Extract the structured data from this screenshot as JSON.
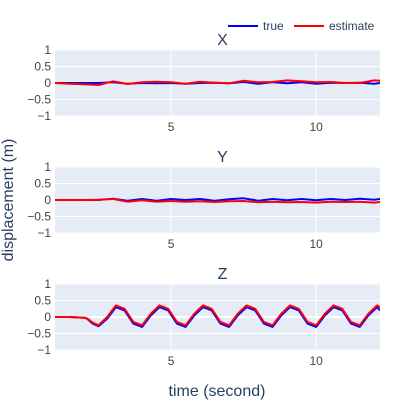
{
  "chart_data": {
    "type": "line",
    "xlabel": "time (second)",
    "ylabel": "displacement (m)",
    "xlim": [
      1,
      12.2
    ],
    "ylim": [
      -1,
      1
    ],
    "xticks": [
      5,
      10
    ],
    "yticks": [
      1,
      0.5,
      0,
      -0.5,
      -1
    ],
    "ytick_labels": [
      "1",
      "0.5",
      "0",
      "−0.5",
      "−1"
    ],
    "grid": true,
    "legend_placement": "top-right",
    "series_styles": [
      {
        "name": "true",
        "color": "#0000ff"
      },
      {
        "name": "estimate",
        "color": "#ff0000"
      }
    ],
    "subplots": [
      {
        "title": "X",
        "series": [
          {
            "name": "true",
            "x": [
              1,
              1.5,
              2,
              2.5,
              3,
              3.5,
              4,
              4.5,
              5,
              5.5,
              6,
              6.5,
              7,
              7.5,
              8,
              8.5,
              9,
              9.5,
              10,
              10.5,
              11,
              11.5,
              12,
              12.2
            ],
            "y": [
              0,
              0,
              0,
              0,
              0.02,
              -0.02,
              0,
              -0.01,
              0,
              -0.02,
              0,
              0.01,
              -0.01,
              0.03,
              -0.02,
              0.02,
              -0.01,
              0.02,
              -0.02,
              0.01,
              0,
              0.01,
              -0.02,
              0
            ]
          },
          {
            "name": "estimate",
            "x": [
              1,
              1.5,
              2,
              2.5,
              3,
              3.5,
              4,
              4.5,
              5,
              5.5,
              6,
              6.5,
              7,
              7.5,
              8,
              8.5,
              9,
              9.5,
              10,
              10.5,
              11,
              11.5,
              12,
              12.2
            ],
            "y": [
              0,
              -0.02,
              -0.04,
              -0.06,
              0.05,
              -0.03,
              0.02,
              0.04,
              0.02,
              -0.02,
              0.04,
              0.01,
              -0.01,
              0.07,
              0.02,
              0.03,
              0.08,
              0.05,
              0.02,
              0.03,
              0,
              0,
              0.08,
              0.07
            ]
          }
        ]
      },
      {
        "title": "Y",
        "series": [
          {
            "name": "true",
            "x": [
              1,
              1.5,
              2,
              2.5,
              3,
              3.5,
              4,
              4.5,
              5,
              5.5,
              6,
              6.5,
              7,
              7.5,
              8,
              8.5,
              9,
              9.5,
              10,
              10.5,
              11,
              11.5,
              12,
              12.2
            ],
            "y": [
              0,
              0,
              0,
              0,
              0.04,
              -0.02,
              0.03,
              -0.02,
              0.03,
              0,
              0.03,
              -0.02,
              0.02,
              0.05,
              -0.02,
              0.03,
              -0.01,
              0.03,
              -0.01,
              0.03,
              0,
              0.04,
              0.01,
              0.03
            ]
          },
          {
            "name": "estimate",
            "x": [
              1,
              1.5,
              2,
              2.5,
              3,
              3.5,
              4,
              4.5,
              5,
              5.5,
              6,
              6.5,
              7,
              7.5,
              8,
              8.5,
              9,
              9.5,
              10,
              10.5,
              11,
              11.5,
              12,
              12.2
            ],
            "y": [
              0,
              0,
              0,
              0.01,
              0.03,
              -0.05,
              -0.01,
              -0.05,
              -0.03,
              -0.05,
              -0.04,
              -0.06,
              -0.04,
              -0.03,
              -0.07,
              -0.05,
              -0.07,
              -0.06,
              -0.08,
              -0.05,
              -0.06,
              -0.05,
              -0.08,
              -0.06
            ]
          }
        ]
      },
      {
        "title": "Z",
        "series": [
          {
            "name": "true",
            "x": [
              1,
              1.5,
              2,
              2.1,
              2.3,
              2.5,
              2.8,
              3.1,
              3.4,
              3.7,
              4.0,
              4.3,
              4.6,
              4.9,
              5.2,
              5.5,
              5.8,
              6.1,
              6.4,
              6.7,
              7.0,
              7.3,
              7.6,
              7.9,
              8.2,
              8.5,
              8.8,
              9.1,
              9.4,
              9.7,
              10.0,
              10.3,
              10.6,
              10.9,
              11.2,
              11.5,
              11.8,
              12.1,
              12.2
            ],
            "y": [
              0,
              0,
              -0.02,
              -0.05,
              -0.2,
              -0.28,
              -0.05,
              0.3,
              0.2,
              -0.2,
              -0.3,
              0.05,
              0.3,
              0.2,
              -0.2,
              -0.3,
              0.05,
              0.3,
              0.2,
              -0.2,
              -0.3,
              0.05,
              0.3,
              0.2,
              -0.2,
              -0.3,
              0.05,
              0.3,
              0.2,
              -0.2,
              -0.3,
              0.05,
              0.3,
              0.2,
              -0.2,
              -0.3,
              0.05,
              0.3,
              0.2
            ]
          },
          {
            "name": "estimate",
            "x": [
              1,
              1.5,
              2,
              2.1,
              2.3,
              2.5,
              2.8,
              3.1,
              3.4,
              3.7,
              4.0,
              4.3,
              4.6,
              4.9,
              5.2,
              5.5,
              5.8,
              6.1,
              6.4,
              6.7,
              7.0,
              7.3,
              7.6,
              7.9,
              8.2,
              8.5,
              8.8,
              9.1,
              9.4,
              9.7,
              10.0,
              10.3,
              10.6,
              10.9,
              11.2,
              11.5,
              11.8,
              12.1,
              12.2
            ],
            "y": [
              0,
              0,
              -0.02,
              -0.04,
              -0.17,
              -0.25,
              0,
              0.35,
              0.25,
              -0.15,
              -0.25,
              0.1,
              0.35,
              0.25,
              -0.15,
              -0.25,
              0.1,
              0.35,
              0.25,
              -0.15,
              -0.25,
              0.1,
              0.35,
              0.25,
              -0.15,
              -0.25,
              0.1,
              0.35,
              0.25,
              -0.15,
              -0.25,
              0.1,
              0.35,
              0.25,
              -0.15,
              -0.25,
              0.1,
              0.35,
              0.3
            ]
          }
        ]
      }
    ]
  }
}
